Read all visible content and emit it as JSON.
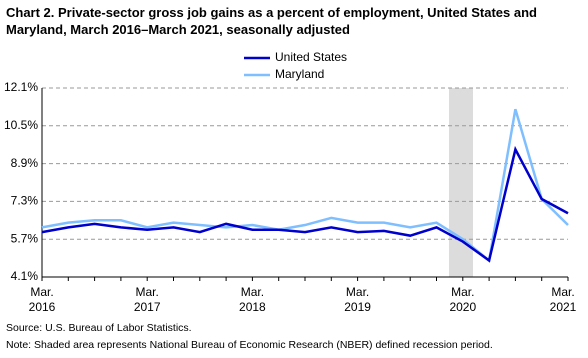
{
  "chart_data": {
    "type": "line",
    "title": "Chart 2. Private-sector gross job gains as a percent of employment, United States and Maryland, March 2016–March 2021, seasonally adjusted",
    "categories": [
      "Mar.\n2016",
      null,
      null,
      null,
      "Mar.\n2017",
      null,
      null,
      null,
      "Mar.\n2018",
      null,
      null,
      null,
      "Mar.\n2019",
      null,
      null,
      null,
      "Mar.\n2020",
      null,
      null,
      null,
      "Mar.\n2021"
    ],
    "series": [
      {
        "name": "United States",
        "color": "#0000cc",
        "values": [
          6.0,
          6.2,
          6.35,
          6.2,
          6.1,
          6.2,
          6.0,
          6.35,
          6.1,
          6.1,
          6.0,
          6.2,
          6.0,
          6.05,
          5.85,
          6.2,
          5.6,
          4.8,
          9.5,
          7.4,
          6.8
        ]
      },
      {
        "name": "Maryland",
        "color": "#7fbfff",
        "values": [
          6.2,
          6.4,
          6.5,
          6.5,
          6.2,
          6.4,
          6.3,
          6.2,
          6.3,
          6.1,
          6.3,
          6.6,
          6.4,
          6.4,
          6.2,
          6.4,
          5.7,
          4.8,
          11.2,
          7.4,
          6.3
        ]
      }
    ],
    "ylim": [
      4.1,
      12.1
    ],
    "yticks": [
      {
        "value": 4.1,
        "label": "4.1%"
      },
      {
        "value": 5.7,
        "label": "5.7%"
      },
      {
        "value": 7.3,
        "label": "7.3%"
      },
      {
        "value": 8.9,
        "label": "8.9%"
      },
      {
        "value": 10.5,
        "label": "10.5%"
      },
      {
        "value": 12.1,
        "label": "12.1%"
      }
    ],
    "grid": true,
    "source": "Source: U.S. Bureau of Labor Statistics.",
    "note": "Note: Shaded area represents National Bureau of Economic Research (NBER) defined recession period."
  }
}
